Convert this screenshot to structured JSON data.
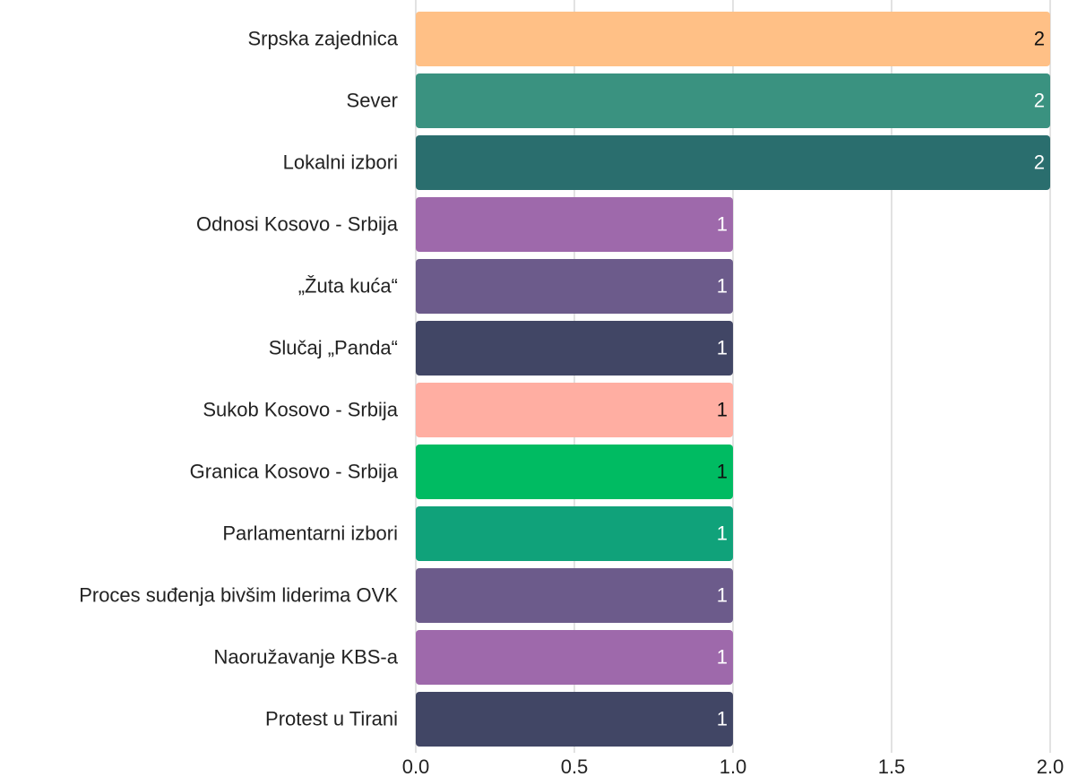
{
  "chart_data": {
    "type": "bar",
    "orientation": "horizontal",
    "categories": [
      "Srpska zajednica",
      "Sever",
      "Lokalni izbori",
      "Odnosi Kosovo - Srbija",
      "„Žuta kuća“",
      "Slučaj „Panda“",
      "Sukob Kosovo - Srbija",
      "Granica Kosovo - Srbija",
      "Parlamentarni izbori",
      "Proces suđenja bivšim liderima OVK",
      "Naoružavanje KBS-a",
      "Protest u Tirani"
    ],
    "values": [
      2,
      2,
      2,
      1,
      1,
      1,
      1,
      1,
      1,
      1,
      1,
      1
    ],
    "colors": [
      "#ffc086",
      "#3a9280",
      "#2a6e6e",
      "#9e69ab",
      "#6c5b8b",
      "#414665",
      "#ffaea2",
      "#00bb62",
      "#10a27a",
      "#6c5b8b",
      "#9e69ab",
      "#414665"
    ],
    "value_label_colors": [
      "#111111",
      "#ffffff",
      "#ffffff",
      "#ffffff",
      "#ffffff",
      "#ffffff",
      "#111111",
      "#111111",
      "#ffffff",
      "#ffffff",
      "#ffffff",
      "#ffffff"
    ],
    "xlim": [
      0,
      2
    ],
    "xticks": [
      {
        "value": 0,
        "label": "0.0"
      },
      {
        "value": 0.5,
        "label": "0.5"
      },
      {
        "value": 1,
        "label": "1.0"
      },
      {
        "value": 1.5,
        "label": "1.5"
      },
      {
        "value": 2,
        "label": "2.0"
      }
    ],
    "grid": true
  }
}
